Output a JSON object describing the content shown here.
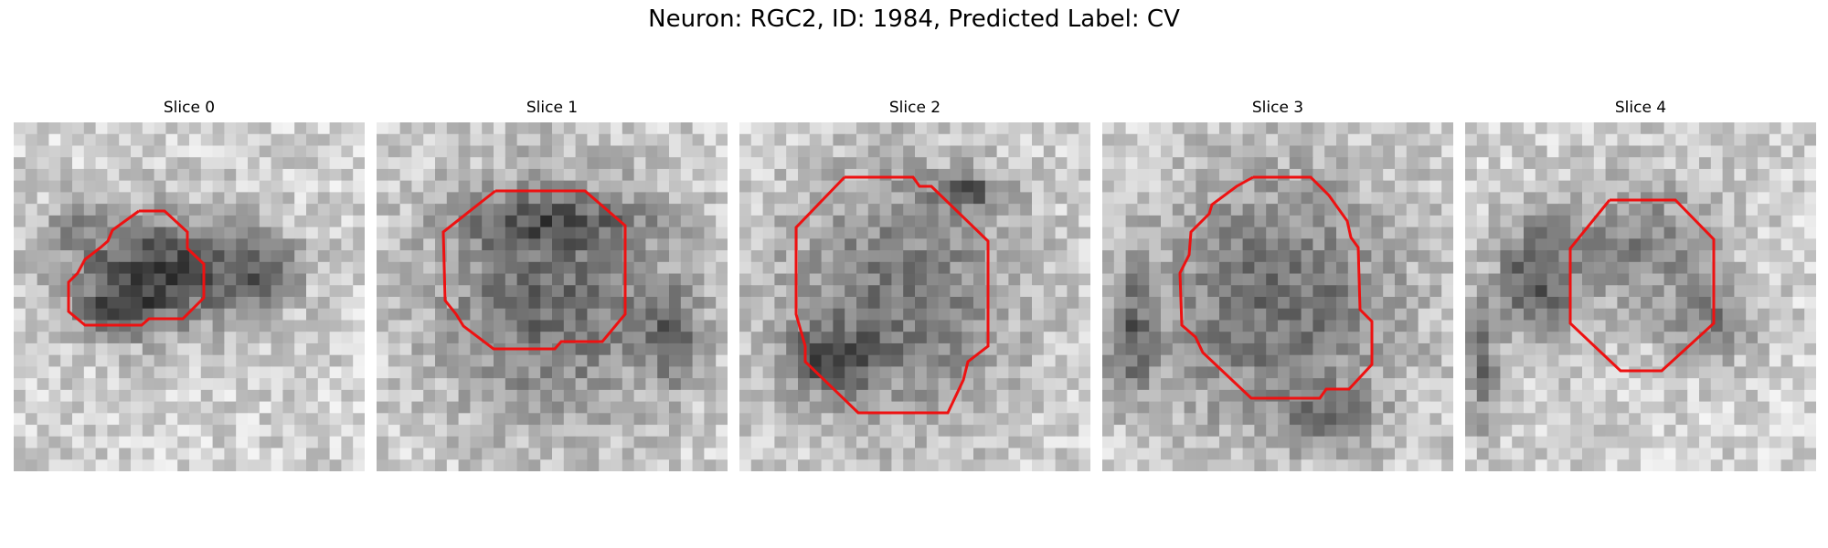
{
  "figure": {
    "title": "Neuron: RGC2, ID: 1984, Predicted Label: CV",
    "contour_color": "#ee1111",
    "slices": [
      {
        "title": "Slice 0"
      },
      {
        "title": "Slice 1"
      },
      {
        "title": "Slice 2"
      },
      {
        "title": "Slice 3"
      },
      {
        "title": "Slice 4"
      }
    ]
  }
}
